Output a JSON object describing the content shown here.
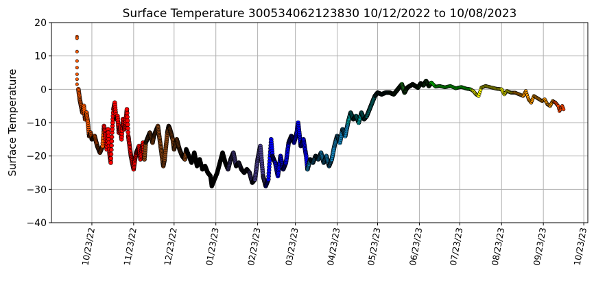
{
  "chart_data": {
    "type": "scatter",
    "title": "Surface Temperature 300534062123830  10/12/2022 to 10/08/2023",
    "xlabel": "",
    "ylabel": "Surface Temperature",
    "ylim": [
      -40,
      20
    ],
    "xlim": [
      "2022-09-23",
      "2023-10-26"
    ],
    "grid": true,
    "y_ticks": [
      "20",
      "10",
      "0",
      "−10",
      "−20",
      "−30",
      "−40"
    ],
    "y_tick_values": [
      20,
      10,
      0,
      -10,
      -20,
      -30,
      -40
    ],
    "x_ticks": [
      "10/23/22",
      "11/23/22",
      "12/23/22",
      "01/23/23",
      "02/23/23",
      "03/23/23",
      "04/23/23",
      "05/23/23",
      "06/23/23",
      "07/23/23",
      "08/23/23",
      "09/23/23",
      "10/23/23"
    ],
    "x_tick_dates": [
      "2022-10-23",
      "2022-11-23",
      "2022-12-23",
      "2023-01-23",
      "2023-02-23",
      "2023-03-23",
      "2023-04-23",
      "2023-05-23",
      "2023-06-23",
      "2023-07-23",
      "2023-08-23",
      "2023-09-23",
      "2023-10-23"
    ],
    "marker_edge_color": "#000000",
    "month_colors": {
      "2022-10": "#ff5a00",
      "2022-11": "#ff0000",
      "2022-12": "#8b4513",
      "2023-01": "#000000",
      "2023-02": "#483d8b",
      "2023-03": "#0000ff",
      "2023-04": "#1eb4ff",
      "2023-05": "#00ffff",
      "2023-06": "#32cd32",
      "2023-07": "#00ff00",
      "2023-08": "#ffff00",
      "2023-09": "#ff9a00",
      "2023-10": "#ff4500"
    },
    "initial_points": [
      [
        "2022-10-12",
        15.8
      ],
      [
        "2022-10-12",
        15.3
      ],
      [
        "2022-10-12",
        11.3
      ],
      [
        "2022-10-12",
        8.5
      ],
      [
        "2022-10-12",
        6.5
      ],
      [
        "2022-10-12",
        4.5
      ],
      [
        "2022-10-12",
        3.0
      ],
      [
        "2022-10-12",
        1.5
      ]
    ],
    "points": [
      [
        "2022-10-13",
        0
      ],
      [
        "2022-10-14",
        -3
      ],
      [
        "2022-10-15",
        -5
      ],
      [
        "2022-10-16",
        -7
      ],
      [
        "2022-10-17",
        -5
      ],
      [
        "2022-10-18",
        -9
      ],
      [
        "2022-10-19",
        -7
      ],
      [
        "2022-10-20",
        -10
      ],
      [
        "2022-10-21",
        -14
      ],
      [
        "2022-10-22",
        -13
      ],
      [
        "2022-10-23",
        -15
      ],
      [
        "2022-10-25",
        -14
      ],
      [
        "2022-10-27",
        -17
      ],
      [
        "2022-10-29",
        -19
      ],
      [
        "2022-10-31",
        -17
      ],
      [
        "2022-11-01",
        -11
      ],
      [
        "2022-11-02",
        -14
      ],
      [
        "2022-11-03",
        -18
      ],
      [
        "2022-11-04",
        -12
      ],
      [
        "2022-11-05",
        -19
      ],
      [
        "2022-11-06",
        -22
      ],
      [
        "2022-11-07",
        -13
      ],
      [
        "2022-11-08",
        -6
      ],
      [
        "2022-11-09",
        -4
      ],
      [
        "2022-11-10",
        -9
      ],
      [
        "2022-11-11",
        -8
      ],
      [
        "2022-11-12",
        -13
      ],
      [
        "2022-11-13",
        -11
      ],
      [
        "2022-11-14",
        -15
      ],
      [
        "2022-11-15",
        -9
      ],
      [
        "2022-11-16",
        -12
      ],
      [
        "2022-11-17",
        -10
      ],
      [
        "2022-11-18",
        -6
      ],
      [
        "2022-11-19",
        -14
      ],
      [
        "2022-11-20",
        -17
      ],
      [
        "2022-11-21",
        -20
      ],
      [
        "2022-11-22",
        -22
      ],
      [
        "2022-11-23",
        -24
      ],
      [
        "2022-11-24",
        -21
      ],
      [
        "2022-11-25",
        -19
      ],
      [
        "2022-11-27",
        -17
      ],
      [
        "2022-11-28",
        -21
      ],
      [
        "2022-11-29",
        -18
      ],
      [
        "2022-11-30",
        -16
      ],
      [
        "2022-12-01",
        -21
      ],
      [
        "2022-12-02",
        -16
      ],
      [
        "2022-12-03",
        -15
      ],
      [
        "2022-12-05",
        -13
      ],
      [
        "2022-12-07",
        -16
      ],
      [
        "2022-12-08",
        -14
      ],
      [
        "2022-12-10",
        -12
      ],
      [
        "2022-12-11",
        -11
      ],
      [
        "2022-12-13",
        -17
      ],
      [
        "2022-12-14",
        -20
      ],
      [
        "2022-12-15",
        -23
      ],
      [
        "2022-12-16",
        -21
      ],
      [
        "2022-12-17",
        -17
      ],
      [
        "2022-12-18",
        -13
      ],
      [
        "2022-12-19",
        -11
      ],
      [
        "2022-12-20",
        -12
      ],
      [
        "2022-12-22",
        -15
      ],
      [
        "2022-12-23",
        -18
      ],
      [
        "2022-12-25",
        -15
      ],
      [
        "2022-12-27",
        -18
      ],
      [
        "2022-12-29",
        -20
      ],
      [
        "2022-12-31",
        -21
      ],
      [
        "2023-01-01",
        -18
      ],
      [
        "2023-01-03",
        -20
      ],
      [
        "2023-01-05",
        -22
      ],
      [
        "2023-01-07",
        -19
      ],
      [
        "2023-01-09",
        -23
      ],
      [
        "2023-01-11",
        -21
      ],
      [
        "2023-01-13",
        -24
      ],
      [
        "2023-01-15",
        -23
      ],
      [
        "2023-01-17",
        -25
      ],
      [
        "2023-01-19",
        -26
      ],
      [
        "2023-01-20",
        -29
      ],
      [
        "2023-01-22",
        -27
      ],
      [
        "2023-01-24",
        -25
      ],
      [
        "2023-01-26",
        -22
      ],
      [
        "2023-01-28",
        -19
      ],
      [
        "2023-01-30",
        -22
      ],
      [
        "2023-02-01",
        -24
      ],
      [
        "2023-02-03",
        -21
      ],
      [
        "2023-02-05",
        -19
      ],
      [
        "2023-02-07",
        -23
      ],
      [
        "2023-02-09",
        -22
      ],
      [
        "2023-02-11",
        -24
      ],
      [
        "2023-02-13",
        -25
      ],
      [
        "2023-02-15",
        -24
      ],
      [
        "2023-02-17",
        -25
      ],
      [
        "2023-02-19",
        -28
      ],
      [
        "2023-02-21",
        -27
      ],
      [
        "2023-02-23",
        -21
      ],
      [
        "2023-02-25",
        -17
      ],
      [
        "2023-02-27",
        -26
      ],
      [
        "2023-03-01",
        -29
      ],
      [
        "2023-03-03",
        -27
      ],
      [
        "2023-03-05",
        -15
      ],
      [
        "2023-03-06",
        -20
      ],
      [
        "2023-03-08",
        -22
      ],
      [
        "2023-03-10",
        -26
      ],
      [
        "2023-03-12",
        -20
      ],
      [
        "2023-03-14",
        -24
      ],
      [
        "2023-03-16",
        -22
      ],
      [
        "2023-03-18",
        -16
      ],
      [
        "2023-03-20",
        -14
      ],
      [
        "2023-03-22",
        -16
      ],
      [
        "2023-03-24",
        -13
      ],
      [
        "2023-03-25",
        -10
      ],
      [
        "2023-03-27",
        -17
      ],
      [
        "2023-03-29",
        -15
      ],
      [
        "2023-03-31",
        -20
      ],
      [
        "2023-04-01",
        -24
      ],
      [
        "2023-04-03",
        -21
      ],
      [
        "2023-04-05",
        -22
      ],
      [
        "2023-04-07",
        -20
      ],
      [
        "2023-04-09",
        -21
      ],
      [
        "2023-04-11",
        -19
      ],
      [
        "2023-04-13",
        -22
      ],
      [
        "2023-04-15",
        -20
      ],
      [
        "2023-04-17",
        -23
      ],
      [
        "2023-04-19",
        -21
      ],
      [
        "2023-04-21",
        -17
      ],
      [
        "2023-04-23",
        -14
      ],
      [
        "2023-04-25",
        -16
      ],
      [
        "2023-04-27",
        -12
      ],
      [
        "2023-04-29",
        -14
      ],
      [
        "2023-05-01",
        -10
      ],
      [
        "2023-05-03",
        -7
      ],
      [
        "2023-05-05",
        -9
      ],
      [
        "2023-05-07",
        -8
      ],
      [
        "2023-05-09",
        -10
      ],
      [
        "2023-05-11",
        -7
      ],
      [
        "2023-05-13",
        -9
      ],
      [
        "2023-05-15",
        -8
      ],
      [
        "2023-05-17",
        -6
      ],
      [
        "2023-05-19",
        -4
      ],
      [
        "2023-05-21",
        -2
      ],
      [
        "2023-05-23",
        -1
      ],
      [
        "2023-05-26",
        -1.5
      ],
      [
        "2023-05-29",
        -1
      ],
      [
        "2023-06-01",
        -1
      ],
      [
        "2023-06-04",
        -1.5
      ],
      [
        "2023-06-06",
        -0.5
      ],
      [
        "2023-06-08",
        0.5
      ],
      [
        "2023-06-10",
        1.5
      ],
      [
        "2023-06-12",
        -1
      ],
      [
        "2023-06-14",
        0.5
      ],
      [
        "2023-06-16",
        1
      ],
      [
        "2023-06-18",
        1.5
      ],
      [
        "2023-06-20",
        1
      ],
      [
        "2023-06-22",
        0.5
      ],
      [
        "2023-06-24",
        1.8
      ],
      [
        "2023-06-26",
        1.2
      ],
      [
        "2023-06-28",
        2.5
      ],
      [
        "2023-06-30",
        1
      ],
      [
        "2023-07-02",
        2
      ],
      [
        "2023-07-05",
        0.8
      ],
      [
        "2023-07-08",
        1
      ],
      [
        "2023-07-12",
        0.6
      ],
      [
        "2023-07-16",
        1
      ],
      [
        "2023-07-20",
        0.3
      ],
      [
        "2023-07-24",
        0.7
      ],
      [
        "2023-07-28",
        0.2
      ],
      [
        "2023-07-31",
        0
      ],
      [
        "2023-08-02",
        -0.5
      ],
      [
        "2023-08-04",
        -1.5
      ],
      [
        "2023-08-06",
        -2
      ],
      [
        "2023-08-08",
        0.5
      ],
      [
        "2023-08-11",
        1
      ],
      [
        "2023-08-15",
        0.6
      ],
      [
        "2023-08-19",
        0.2
      ],
      [
        "2023-08-23",
        0
      ],
      [
        "2023-08-25",
        -1.5
      ],
      [
        "2023-08-27",
        -0.5
      ],
      [
        "2023-08-30",
        -1
      ],
      [
        "2023-09-02",
        -1
      ],
      [
        "2023-09-05",
        -1.5
      ],
      [
        "2023-09-08",
        -2
      ],
      [
        "2023-09-10",
        -0.5
      ],
      [
        "2023-09-12",
        -3
      ],
      [
        "2023-09-14",
        -4
      ],
      [
        "2023-09-16",
        -2
      ],
      [
        "2023-09-18",
        -2.5
      ],
      [
        "2023-09-20",
        -3
      ],
      [
        "2023-09-22",
        -3.5
      ],
      [
        "2023-09-24",
        -3
      ],
      [
        "2023-09-26",
        -4.5
      ],
      [
        "2023-09-28",
        -5
      ],
      [
        "2023-09-30",
        -3.5
      ],
      [
        "2023-10-02",
        -4
      ],
      [
        "2023-10-04",
        -5
      ],
      [
        "2023-10-05",
        -6.5
      ],
      [
        "2023-10-07",
        -5
      ],
      [
        "2023-10-08",
        -6
      ]
    ]
  }
}
